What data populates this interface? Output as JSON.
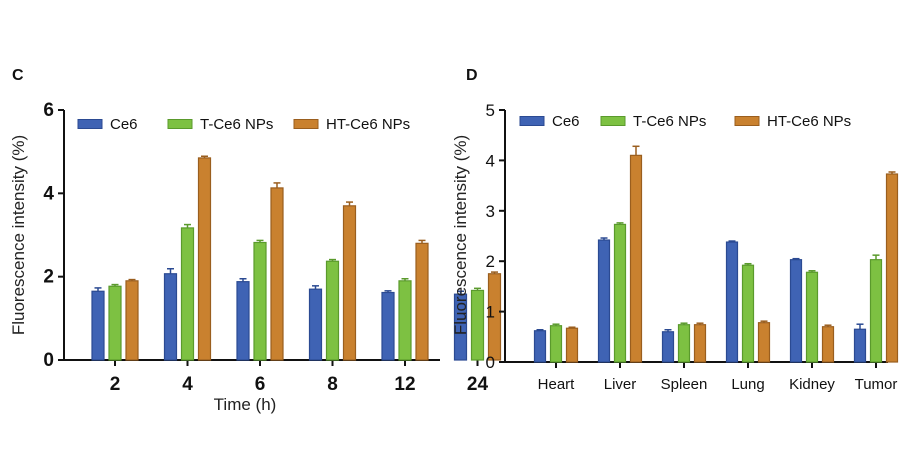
{
  "colors": {
    "Ce6": {
      "fill": "#3f63b4",
      "edge": "#2b4a92"
    },
    "T-Ce6 NPs": {
      "fill": "#7dc142",
      "edge": "#5a9a2c"
    },
    "HT-Ce6 NPs": {
      "fill": "#c9812f",
      "edge": "#9a5e1e"
    }
  },
  "chart_data": [
    {
      "panel": "C",
      "type": "bar",
      "xlabel": "Time (h)",
      "ylabel": "Fluorescence intensity (%)",
      "ylim": [
        0,
        6
      ],
      "yticks": [
        0,
        2,
        4,
        6
      ],
      "categories": [
        "2",
        "4",
        "6",
        "8",
        "12",
        "24"
      ],
      "legend": "top-left, horizontal",
      "series": [
        {
          "name": "Ce6",
          "values": [
            1.65,
            2.07,
            1.88,
            1.7,
            1.62,
            1.58
          ],
          "errors": [
            0.08,
            0.12,
            0.07,
            0.08,
            0.04,
            0.07
          ]
        },
        {
          "name": "T-Ce6 NPs",
          "values": [
            1.77,
            3.17,
            2.82,
            2.37,
            1.9,
            1.67
          ],
          "errors": [
            0.04,
            0.08,
            0.05,
            0.04,
            0.05,
            0.05
          ]
        },
        {
          "name": "HT-Ce6 NPs",
          "values": [
            1.9,
            4.85,
            4.13,
            3.7,
            2.8,
            2.07
          ],
          "errors": [
            0.03,
            0.04,
            0.12,
            0.09,
            0.07,
            0.04
          ]
        }
      ]
    },
    {
      "panel": "D",
      "type": "bar",
      "xlabel": "",
      "ylabel": "Fluorescence intensity (%)",
      "ylim": [
        0,
        5
      ],
      "yticks": [
        0,
        1,
        2,
        3,
        4,
        5
      ],
      "categories": [
        "Heart",
        "Liver",
        "Spleen",
        "Lung",
        "Kidney",
        "Tumor"
      ],
      "legend": "top-left, horizontal",
      "series": [
        {
          "name": "Ce6",
          "values": [
            0.62,
            2.42,
            0.6,
            2.38,
            2.03,
            0.65
          ],
          "errors": [
            0.02,
            0.04,
            0.04,
            0.02,
            0.02,
            0.1
          ]
        },
        {
          "name": "T-Ce6 NPs",
          "values": [
            0.72,
            2.73,
            0.74,
            1.92,
            1.78,
            2.03
          ],
          "errors": [
            0.03,
            0.03,
            0.03,
            0.03,
            0.03,
            0.09
          ]
        },
        {
          "name": "HT-Ce6 NPs",
          "values": [
            0.67,
            4.1,
            0.74,
            0.78,
            0.7,
            3.73
          ],
          "errors": [
            0.02,
            0.18,
            0.03,
            0.03,
            0.03,
            0.04
          ]
        }
      ]
    }
  ]
}
